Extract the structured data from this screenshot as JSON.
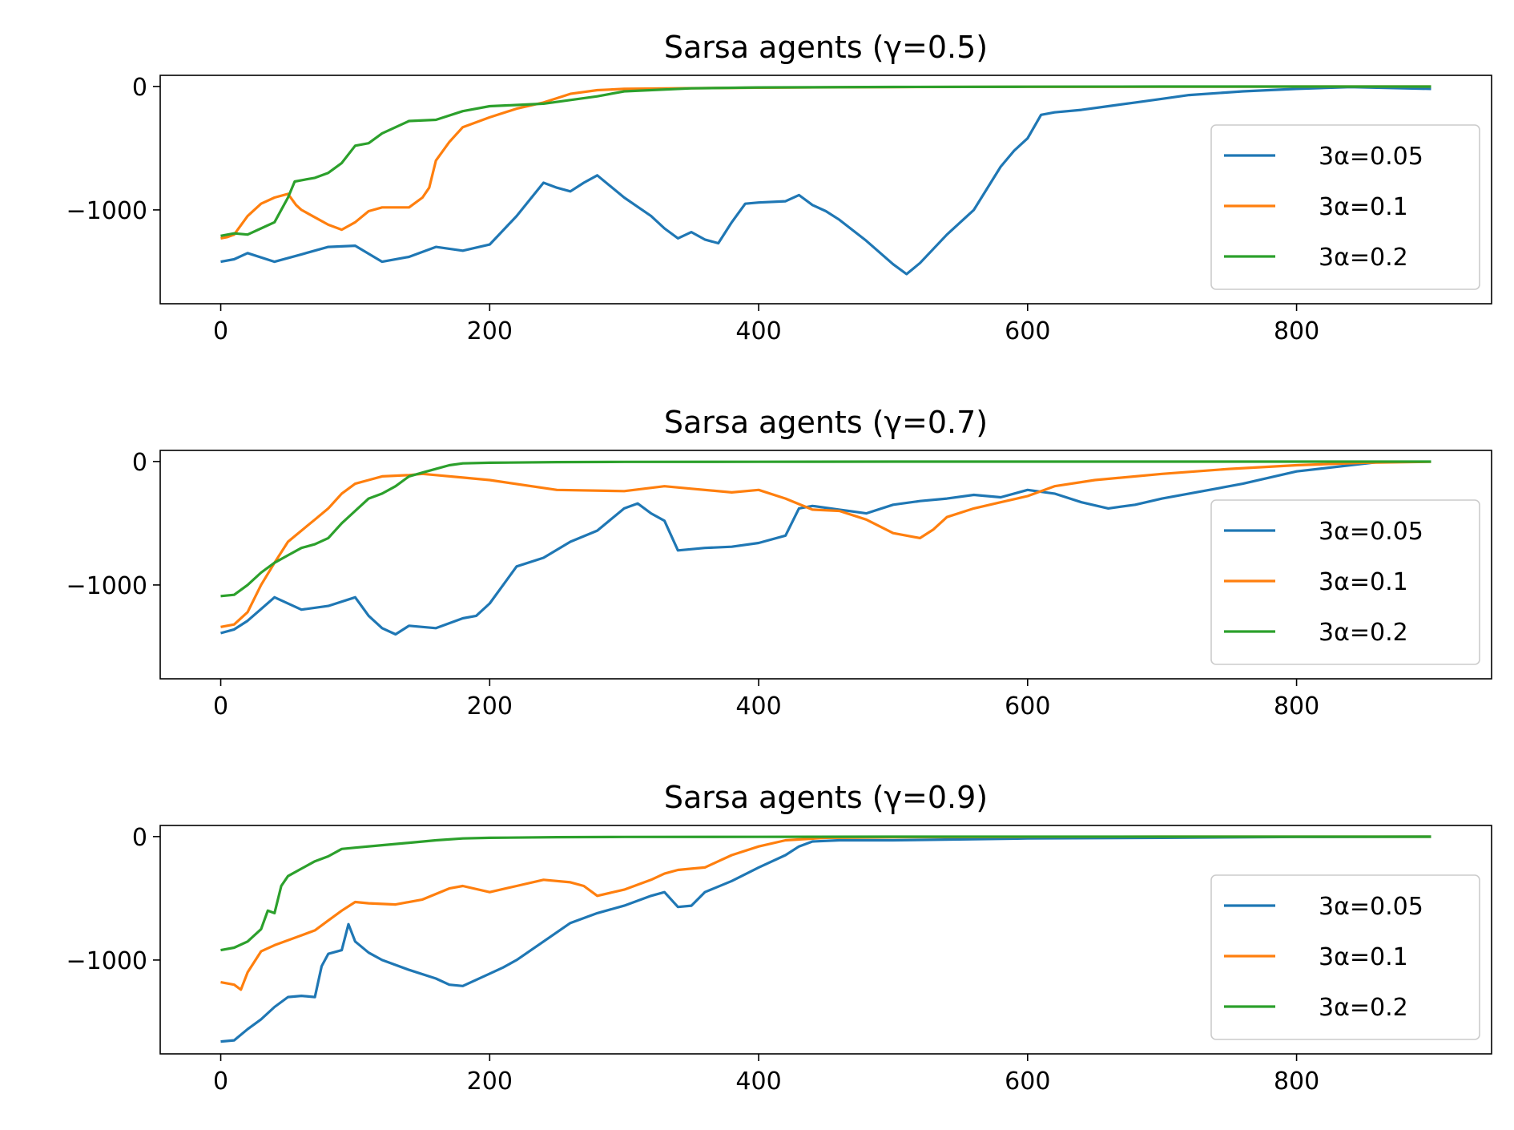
{
  "colors": {
    "series": [
      "#1f77b4",
      "#ff7f0e",
      "#2ca02c"
    ],
    "axes": "#000000",
    "background": "#ffffff",
    "legend_border": "#cccccc"
  },
  "chart_data": [
    {
      "type": "line",
      "title": "Sarsa agents (γ=0.5)",
      "xlabel": "",
      "ylabel": "",
      "xlim": [
        -45,
        945
      ],
      "ylim": [
        -1760,
        90
      ],
      "xticks": [
        0,
        200,
        400,
        600,
        800
      ],
      "xtick_labels": [
        "0",
        "200",
        "400",
        "600",
        "800"
      ],
      "yticks": [
        0,
        -1000
      ],
      "ytick_labels": [
        "0",
        "−1000"
      ],
      "grid": false,
      "legend_position": "right",
      "series": [
        {
          "name": "3α=0.05",
          "color": "#1f77b4",
          "x": [
            0,
            10,
            20,
            40,
            60,
            80,
            100,
            120,
            140,
            160,
            180,
            200,
            220,
            240,
            250,
            260,
            270,
            280,
            300,
            320,
            330,
            340,
            350,
            360,
            370,
            380,
            390,
            400,
            420,
            430,
            440,
            450,
            460,
            480,
            500,
            510,
            520,
            540,
            560,
            580,
            590,
            600,
            610,
            620,
            640,
            660,
            680,
            700,
            720,
            760,
            800,
            840,
            900
          ],
          "y": [
            -1420,
            -1400,
            -1350,
            -1420,
            -1360,
            -1300,
            -1290,
            -1420,
            -1380,
            -1300,
            -1330,
            -1280,
            -1050,
            -780,
            -820,
            -850,
            -780,
            -720,
            -900,
            -1050,
            -1150,
            -1230,
            -1180,
            -1240,
            -1270,
            -1100,
            -950,
            -940,
            -930,
            -880,
            -960,
            -1010,
            -1080,
            -1250,
            -1440,
            -1520,
            -1430,
            -1200,
            -1000,
            -650,
            -520,
            -420,
            -230,
            -210,
            -190,
            -160,
            -130,
            -100,
            -70,
            -40,
            -20,
            -5,
            -20
          ]
        },
        {
          "name": "3α=0.1",
          "color": "#ff7f0e",
          "x": [
            0,
            5,
            10,
            20,
            30,
            40,
            50,
            56,
            60,
            70,
            80,
            90,
            100,
            110,
            120,
            140,
            150,
            155,
            160,
            170,
            180,
            200,
            220,
            240,
            260,
            280,
            300,
            340,
            400,
            500,
            600,
            700,
            800,
            900
          ],
          "y": [
            -1230,
            -1220,
            -1200,
            -1050,
            -950,
            -900,
            -870,
            -960,
            -1000,
            -1060,
            -1120,
            -1160,
            -1100,
            -1010,
            -980,
            -980,
            -900,
            -820,
            -600,
            -450,
            -330,
            -250,
            -180,
            -130,
            -60,
            -30,
            -20,
            -15,
            -10,
            -5,
            -3,
            -2,
            -1,
            -1
          ]
        },
        {
          "name": "3α=0.2",
          "color": "#2ca02c",
          "x": [
            0,
            10,
            20,
            30,
            40,
            50,
            55,
            60,
            70,
            80,
            90,
            100,
            110,
            120,
            140,
            160,
            180,
            200,
            220,
            240,
            260,
            280,
            300,
            350,
            400,
            500,
            600,
            700,
            800,
            900
          ],
          "y": [
            -1210,
            -1190,
            -1200,
            -1150,
            -1100,
            -900,
            -770,
            -760,
            -740,
            -700,
            -620,
            -480,
            -460,
            -380,
            -280,
            -270,
            -200,
            -160,
            -150,
            -140,
            -110,
            -80,
            -40,
            -15,
            -8,
            -4,
            -2,
            -1,
            -1,
            -1
          ]
        }
      ]
    },
    {
      "type": "line",
      "title": "Sarsa agents (γ=0.7)",
      "xlabel": "",
      "ylabel": "",
      "xlim": [
        -45,
        945
      ],
      "ylim": [
        -1760,
        90
      ],
      "xticks": [
        0,
        200,
        400,
        600,
        800
      ],
      "xtick_labels": [
        "0",
        "200",
        "400",
        "600",
        "800"
      ],
      "yticks": [
        0,
        -1000
      ],
      "ytick_labels": [
        "0",
        "−1000"
      ],
      "grid": false,
      "legend_position": "right",
      "series": [
        {
          "name": "3α=0.05",
          "color": "#1f77b4",
          "x": [
            0,
            10,
            20,
            40,
            60,
            80,
            100,
            110,
            120,
            130,
            140,
            160,
            180,
            190,
            200,
            220,
            240,
            260,
            280,
            300,
            310,
            320,
            330,
            340,
            360,
            380,
            400,
            420,
            430,
            440,
            460,
            480,
            500,
            520,
            540,
            560,
            580,
            600,
            620,
            640,
            660,
            680,
            700,
            720,
            760,
            800,
            860
          ],
          "y": [
            -1390,
            -1360,
            -1290,
            -1100,
            -1200,
            -1170,
            -1100,
            -1250,
            -1350,
            -1400,
            -1330,
            -1350,
            -1270,
            -1250,
            -1150,
            -850,
            -780,
            -650,
            -560,
            -380,
            -340,
            -420,
            -480,
            -720,
            -700,
            -690,
            -660,
            -600,
            -380,
            -360,
            -390,
            -420,
            -350,
            -320,
            -300,
            -270,
            -290,
            -230,
            -260,
            -330,
            -380,
            -350,
            -300,
            -260,
            -180,
            -80,
            -5
          ]
        },
        {
          "name": "3α=0.1",
          "color": "#ff7f0e",
          "x": [
            0,
            10,
            20,
            30,
            40,
            50,
            60,
            70,
            80,
            90,
            100,
            110,
            120,
            140,
            150,
            160,
            180,
            200,
            250,
            300,
            330,
            350,
            380,
            400,
            420,
            440,
            460,
            480,
            500,
            520,
            530,
            540,
            560,
            580,
            600,
            620,
            650,
            700,
            750,
            800,
            850,
            900
          ],
          "y": [
            -1340,
            -1320,
            -1220,
            -1000,
            -820,
            -650,
            -560,
            -470,
            -380,
            -260,
            -180,
            -150,
            -120,
            -110,
            -100,
            -110,
            -130,
            -150,
            -230,
            -240,
            -200,
            -220,
            -250,
            -230,
            -300,
            -390,
            -400,
            -470,
            -580,
            -620,
            -550,
            -450,
            -380,
            -330,
            -280,
            -200,
            -150,
            -100,
            -60,
            -30,
            -10,
            -2
          ]
        },
        {
          "name": "3α=0.2",
          "color": "#2ca02c",
          "x": [
            0,
            10,
            20,
            30,
            40,
            50,
            60,
            70,
            80,
            90,
            100,
            110,
            120,
            130,
            140,
            150,
            160,
            170,
            180,
            200,
            250,
            300,
            400,
            500,
            600,
            700,
            800,
            900
          ],
          "y": [
            -1090,
            -1080,
            -1000,
            -900,
            -820,
            -760,
            -700,
            -670,
            -620,
            -500,
            -400,
            -300,
            -260,
            -200,
            -120,
            -90,
            -60,
            -30,
            -15,
            -10,
            -5,
            -3,
            -2,
            -1,
            -1,
            -1,
            -1,
            -1
          ]
        }
      ]
    },
    {
      "type": "line",
      "title": "Sarsa agents (γ=0.9)",
      "xlabel": "",
      "ylabel": "",
      "xlim": [
        -45,
        945
      ],
      "ylim": [
        -1760,
        90
      ],
      "xticks": [
        0,
        200,
        400,
        600,
        800
      ],
      "xtick_labels": [
        "0",
        "200",
        "400",
        "600",
        "800"
      ],
      "yticks": [
        0,
        -1000
      ],
      "ytick_labels": [
        "0",
        "−1000"
      ],
      "grid": false,
      "legend_position": "right",
      "series": [
        {
          "name": "3α=0.05",
          "color": "#1f77b4",
          "x": [
            0,
            10,
            20,
            30,
            40,
            50,
            60,
            70,
            75,
            80,
            90,
            95,
            100,
            110,
            120,
            140,
            160,
            170,
            180,
            200,
            210,
            220,
            240,
            260,
            280,
            300,
            320,
            330,
            340,
            350,
            360,
            380,
            400,
            420,
            430,
            440,
            460,
            500,
            600,
            700,
            800,
            900
          ],
          "y": [
            -1660,
            -1650,
            -1560,
            -1480,
            -1380,
            -1300,
            -1290,
            -1300,
            -1050,
            -950,
            -920,
            -710,
            -850,
            -940,
            -1000,
            -1080,
            -1150,
            -1200,
            -1210,
            -1110,
            -1060,
            -1000,
            -850,
            -700,
            -620,
            -560,
            -480,
            -450,
            -570,
            -560,
            -450,
            -360,
            -250,
            -150,
            -80,
            -40,
            -30,
            -30,
            -15,
            -10,
            -3,
            -1
          ]
        },
        {
          "name": "3α=0.1",
          "color": "#ff7f0e",
          "x": [
            0,
            10,
            15,
            20,
            30,
            40,
            50,
            60,
            70,
            80,
            90,
            100,
            110,
            130,
            150,
            170,
            180,
            200,
            220,
            240,
            260,
            270,
            280,
            300,
            320,
            330,
            340,
            350,
            360,
            370,
            380,
            400,
            420,
            450,
            500,
            600,
            700,
            800,
            900
          ],
          "y": [
            -1180,
            -1200,
            -1240,
            -1100,
            -930,
            -880,
            -840,
            -800,
            -760,
            -680,
            -600,
            -530,
            -540,
            -550,
            -510,
            -420,
            -400,
            -450,
            -400,
            -350,
            -370,
            -400,
            -480,
            -430,
            -350,
            -300,
            -270,
            -260,
            -250,
            -200,
            -150,
            -80,
            -30,
            -10,
            -5,
            -2,
            -1,
            -1,
            -1
          ]
        },
        {
          "name": "3α=0.2",
          "color": "#2ca02c",
          "x": [
            0,
            10,
            20,
            30,
            35,
            40,
            45,
            50,
            60,
            70,
            80,
            90,
            100,
            120,
            140,
            160,
            180,
            200,
            250,
            300,
            400,
            500,
            600,
            700,
            800,
            900
          ],
          "y": [
            -920,
            -900,
            -850,
            -750,
            -600,
            -620,
            -400,
            -320,
            -260,
            -200,
            -160,
            -100,
            -90,
            -70,
            -50,
            -30,
            -15,
            -10,
            -5,
            -3,
            -2,
            -1,
            -1,
            -1,
            -1,
            -1
          ]
        }
      ]
    }
  ]
}
